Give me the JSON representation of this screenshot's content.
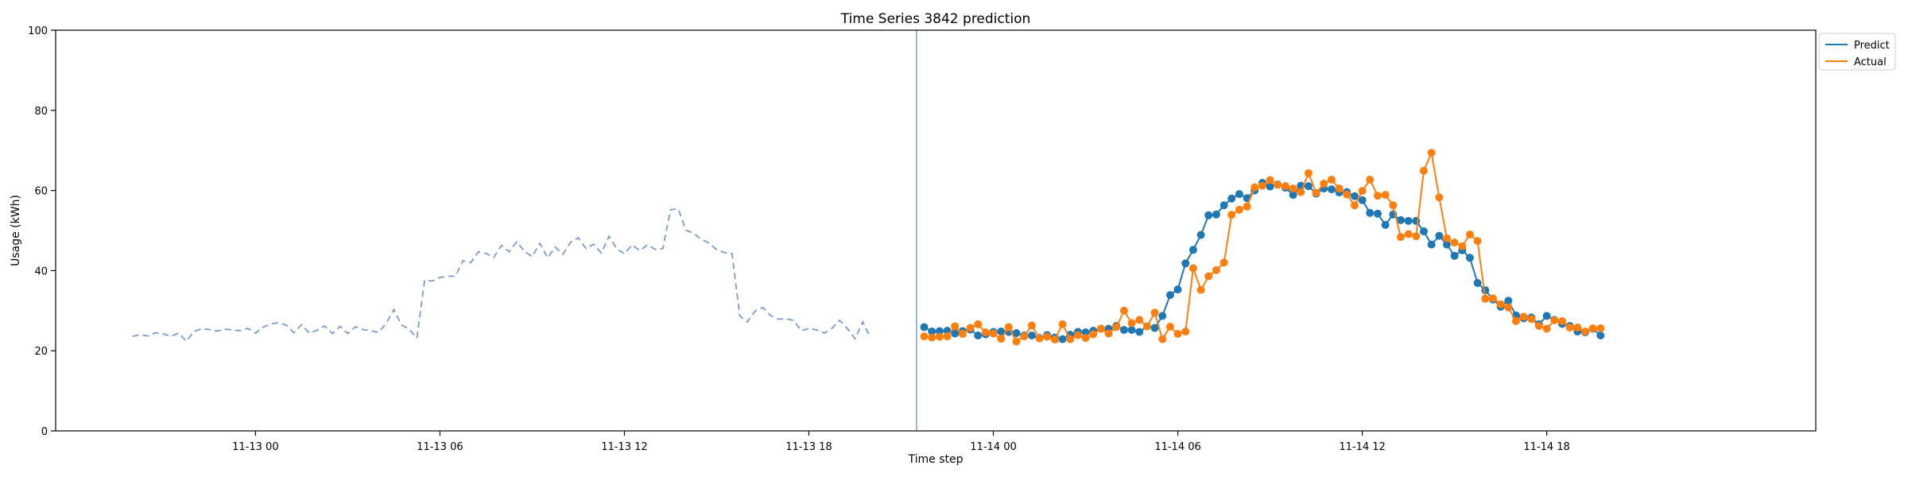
{
  "chart_data": {
    "type": "line",
    "title": "Time Series 3842 prediction",
    "xlabel": "Time step",
    "ylabel": "Usage (kWh)",
    "ylim": [
      0,
      100
    ],
    "xlim": [
      "11-12 17:30",
      "11-15 02:45"
    ],
    "grid": false,
    "legend_position": "top-right, outside plot",
    "x_ticks": [
      "11-13 00",
      "11-13 06",
      "11-13 12",
      "11-13 18",
      "11-14 00",
      "11-14 06",
      "11-14 12",
      "11-14 18"
    ],
    "y_ticks": [
      0,
      20,
      40,
      60,
      80,
      100
    ],
    "forecast_start": "11-13 21:30",
    "history": {
      "color": "#7b9ccb",
      "style": "dashed",
      "x_start": "11-12 20:00",
      "step_minutes": 15,
      "values": [
        23.6,
        24.0,
        23.7,
        24.5,
        24.2,
        23.6,
        24.4,
        22.4,
        24.8,
        25.5,
        25.3,
        24.9,
        25.4,
        25.2,
        25.0,
        25.6,
        24.4,
        25.9,
        26.7,
        27.0,
        26.4,
        24.5,
        26.5,
        24.4,
        25.1,
        26.2,
        24.3,
        26.1,
        24.3,
        26.0,
        25.3,
        25.0,
        24.6,
        26.8,
        30.3,
        26.4,
        25.4,
        23.2,
        37.6,
        37.4,
        38.3,
        38.6,
        38.6,
        42.5,
        42.0,
        44.7,
        44.3,
        43.3,
        46.3,
        44.7,
        47.2,
        44.8,
        43.5,
        46.8,
        43.2,
        45.9,
        44.1,
        47.1,
        48.2,
        45.5,
        46.6,
        44.4,
        48.6,
        45.5,
        44.2,
        46.4,
        45.0,
        46.4,
        45.3,
        45.5,
        55.2,
        55.4,
        50.1,
        49.3,
        47.8,
        46.9,
        45.2,
        44.5,
        44.2,
        28.7,
        27.2,
        29.9,
        30.8,
        28.8,
        27.9,
        28.0,
        27.6,
        25.0,
        25.6,
        25.2,
        24.4,
        25.6,
        27.6,
        25.6,
        23.0,
        27.2,
        23.3
      ]
    },
    "x_start": "11-13 21:45",
    "step_minutes": 15,
    "series": [
      {
        "name": "Predict",
        "color": "#1f77b4",
        "values": [
          25.9,
          24.8,
          24.9,
          25.0,
          24.3,
          24.9,
          25.3,
          23.8,
          24.1,
          24.7,
          24.8,
          24.7,
          24.4,
          23.8,
          23.8,
          23.2,
          23.9,
          23.3,
          22.9,
          24.0,
          24.7,
          24.6,
          25.0,
          25.5,
          25.5,
          26.2,
          25.2,
          25.2,
          24.7,
          26.1,
          25.7,
          28.7,
          33.9,
          35.3,
          41.8,
          45.2,
          48.9,
          53.8,
          54.0,
          56.3,
          58.0,
          59.1,
          58.1,
          60.0,
          61.9,
          61.0,
          61.5,
          60.7,
          58.9,
          61.2,
          61.1,
          59.2,
          60.5,
          60.3,
          59.5,
          59.6,
          58.6,
          57.6,
          54.4,
          54.2,
          51.4,
          54.0,
          52.6,
          52.4,
          52.4,
          49.8,
          46.5,
          48.7,
          46.5,
          43.7,
          45.1,
          43.2,
          36.9,
          35.1,
          32.8,
          31.0,
          32.5,
          28.8,
          28.1,
          28.3,
          26.6,
          28.7,
          27.7,
          26.7,
          26.2,
          24.8,
          24.6,
          25.5,
          23.8
        ]
      },
      {
        "name": "Actual",
        "color": "#ff7f0e",
        "values": [
          23.6,
          23.3,
          23.5,
          23.6,
          26.1,
          24.2,
          25.7,
          26.6,
          24.6,
          24.3,
          23.0,
          25.9,
          22.3,
          23.6,
          26.3,
          23.1,
          23.5,
          22.8,
          26.6,
          22.9,
          23.9,
          23.2,
          24.1,
          25.5,
          24.3,
          25.9,
          30.0,
          26.9,
          27.7,
          26.1,
          29.5,
          22.9,
          26.0,
          24.2,
          24.8,
          40.6,
          35.2,
          38.6,
          40.1,
          42.0,
          53.9,
          55.2,
          56.0,
          60.8,
          61.2,
          62.6,
          61.4,
          61.1,
          60.5,
          59.6,
          64.3,
          59.4,
          61.7,
          62.7,
          60.5,
          59.0,
          56.3,
          59.9,
          62.7,
          58.7,
          58.9,
          56.3,
          48.4,
          49.1,
          48.6,
          64.9,
          69.4,
          58.3,
          48.1,
          47.0,
          46.1,
          49.0,
          47.4,
          33.0,
          33.1,
          31.6,
          30.8,
          27.4,
          28.5,
          27.9,
          26.2,
          25.5,
          27.6,
          27.4,
          25.8,
          25.8,
          24.8,
          25.6,
          25.6
        ]
      }
    ]
  }
}
